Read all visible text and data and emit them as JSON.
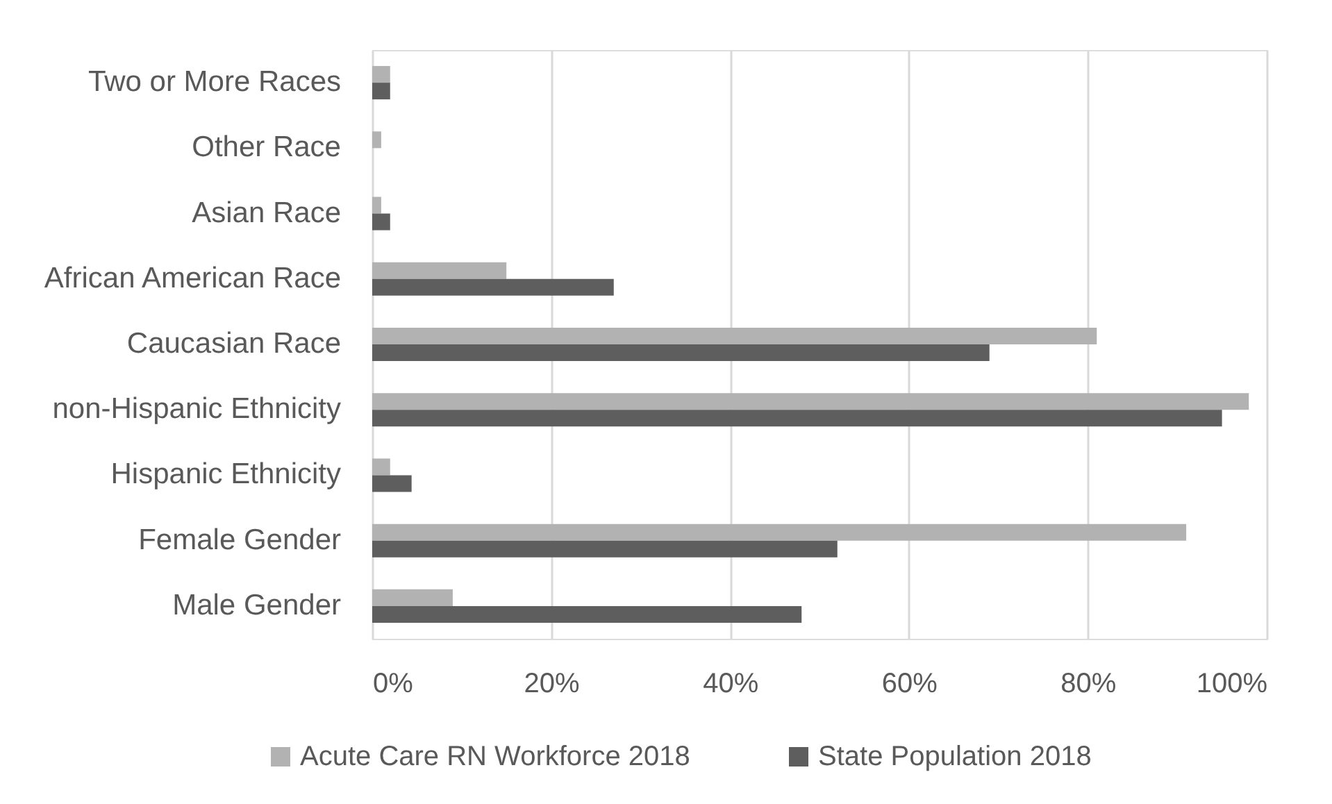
{
  "chart_data": {
    "type": "bar",
    "orientation": "horizontal",
    "categories": [
      "Two or More Races",
      "Other Race",
      "Asian Race",
      "African American Race",
      "Caucasian Race",
      "non-Hispanic Ethnicity",
      "Hispanic Ethnicity",
      "Female Gender",
      "Male Gender"
    ],
    "series": [
      {
        "name": "Acute Care RN Workforce 2018",
        "color": "#b2b2b2",
        "values": [
          2,
          1,
          1,
          15,
          81,
          98,
          2,
          91,
          9
        ]
      },
      {
        "name": "State Population 2018",
        "color": "#5e5e5e",
        "values": [
          2,
          null,
          2,
          27,
          69,
          95,
          4.4,
          52,
          48
        ]
      }
    ],
    "xlim": [
      0,
      100
    ],
    "xticks": [
      {
        "value": 0,
        "label": "0%"
      },
      {
        "value": 20,
        "label": "20%"
      },
      {
        "value": 40,
        "label": "40%"
      },
      {
        "value": 60,
        "label": "60%"
      },
      {
        "value": 80,
        "label": "80%"
      },
      {
        "value": 100,
        "label": "100%"
      }
    ],
    "grid": "x",
    "legend": "bottom"
  }
}
